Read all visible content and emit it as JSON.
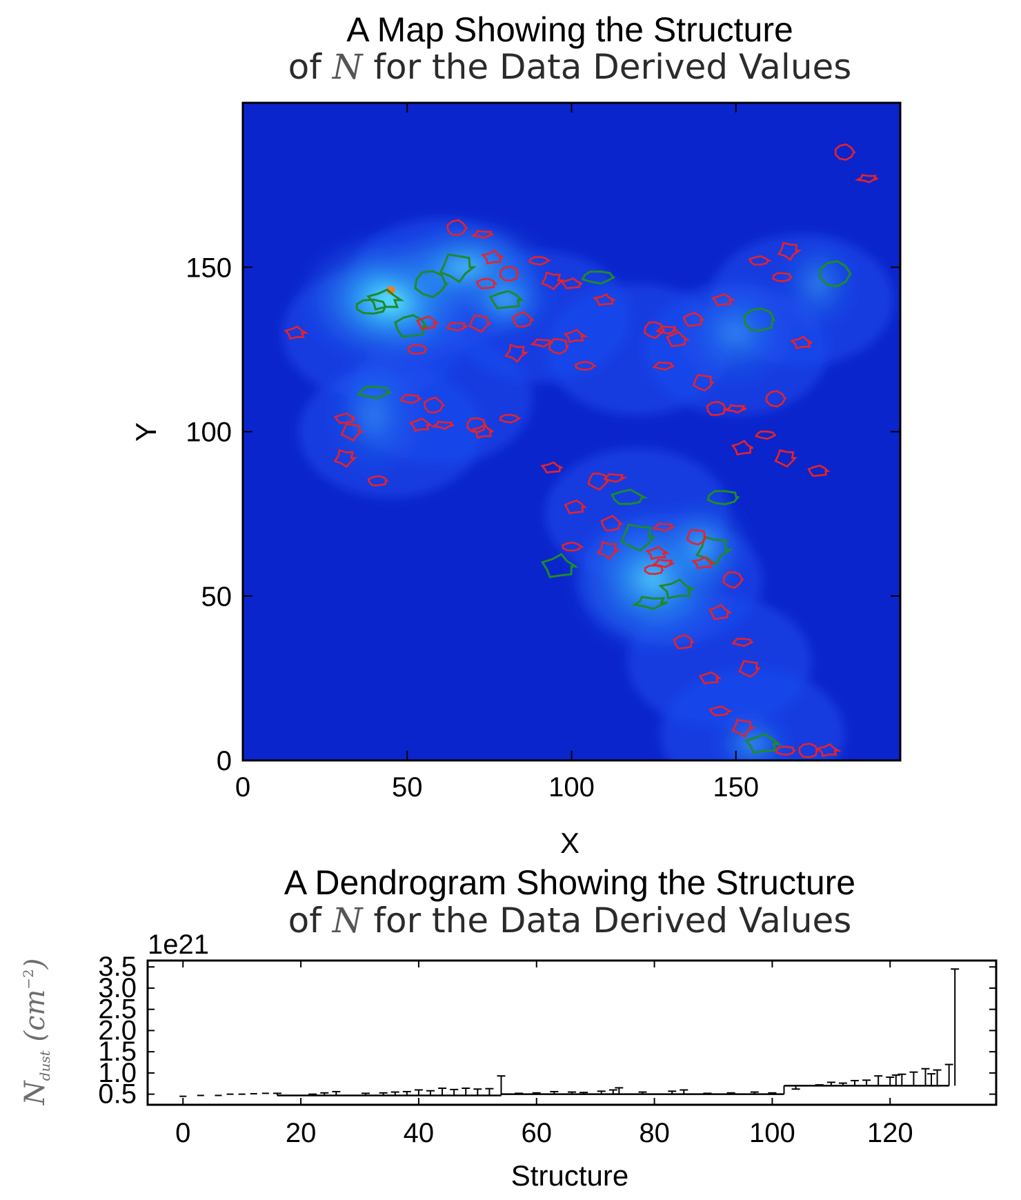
{
  "chart_data": [
    {
      "type": "heatmap",
      "title_line1": "A Map Showing the Structure",
      "title_line2": {
        "prefix": "of ",
        "italic": "N",
        "suffix": " for the Data Derived Values"
      },
      "xlabel": "X",
      "ylabel": "Y",
      "xlim": [
        0,
        200
      ],
      "ylim": [
        0,
        200
      ],
      "xticks": [
        0,
        50,
        100,
        150
      ],
      "yticks": [
        0,
        50,
        100,
        150
      ],
      "colormap": {
        "low": "#0a1fc8",
        "mid": "#1e5cf0",
        "high": "#35d0f0",
        "peak": "#ff7a1a"
      },
      "bright_regions": [
        {
          "x": 45,
          "y": 140,
          "rx": 22,
          "ry": 16,
          "level": 1.0
        },
        {
          "x": 68,
          "y": 150,
          "rx": 20,
          "ry": 12,
          "level": 0.7
        },
        {
          "x": 80,
          "y": 140,
          "rx": 12,
          "ry": 10,
          "level": 0.55
        },
        {
          "x": 125,
          "y": 55,
          "rx": 20,
          "ry": 18,
          "level": 0.75
        },
        {
          "x": 140,
          "y": 65,
          "rx": 12,
          "ry": 12,
          "level": 0.5
        },
        {
          "x": 155,
          "y": 5,
          "rx": 10,
          "ry": 8,
          "level": 0.45
        },
        {
          "x": 150,
          "y": 130,
          "rx": 14,
          "ry": 14,
          "level": 0.35
        },
        {
          "x": 175,
          "y": 145,
          "rx": 10,
          "ry": 12,
          "level": 0.35
        },
        {
          "x": 40,
          "y": 105,
          "rx": 12,
          "ry": 16,
          "level": 0.3
        }
      ],
      "contours": {
        "green": [
          [
            43,
            140
          ],
          [
            65,
            150
          ],
          [
            80,
            140
          ],
          [
            108,
            147
          ],
          [
            157,
            134
          ],
          [
            180,
            148
          ],
          [
            146,
            80
          ],
          [
            117,
            80
          ],
          [
            120,
            68
          ],
          [
            96,
            59
          ],
          [
            124,
            48
          ],
          [
            132,
            52
          ],
          [
            143,
            64
          ],
          [
            158,
            5
          ],
          [
            40,
            112
          ],
          [
            51,
            132
          ],
          [
            57,
            145
          ],
          [
            39,
            138
          ]
        ],
        "red": [
          [
            16,
            130
          ],
          [
            65,
            162
          ],
          [
            73,
            160
          ],
          [
            81,
            148
          ],
          [
            76,
            153
          ],
          [
            90,
            152
          ],
          [
            94,
            146
          ],
          [
            74,
            145
          ],
          [
            100,
            145
          ],
          [
            72,
            133
          ],
          [
            65,
            132
          ],
          [
            56,
            133
          ],
          [
            85,
            134
          ],
          [
            91,
            127
          ],
          [
            96,
            126
          ],
          [
            101,
            129
          ],
          [
            104,
            120
          ],
          [
            83,
            124
          ],
          [
            53,
            125
          ],
          [
            110,
            140
          ],
          [
            125,
            131
          ],
          [
            129,
            131
          ],
          [
            137,
            134
          ],
          [
            132,
            128
          ],
          [
            128,
            120
          ],
          [
            140,
            115
          ],
          [
            146,
            140
          ],
          [
            157,
            152
          ],
          [
            166,
            155
          ],
          [
            164,
            147
          ],
          [
            170,
            127
          ],
          [
            162,
            110
          ],
          [
            150,
            107
          ],
          [
            144,
            107
          ],
          [
            152,
            95
          ],
          [
            159,
            99
          ],
          [
            165,
            92
          ],
          [
            175,
            88
          ],
          [
            31,
            104
          ],
          [
            33,
            100
          ],
          [
            51,
            110
          ],
          [
            54,
            102
          ],
          [
            58,
            108
          ],
          [
            61,
            102
          ],
          [
            71,
            102
          ],
          [
            73,
            100
          ],
          [
            81,
            104
          ],
          [
            31,
            92
          ],
          [
            41,
            85
          ],
          [
            94,
            89
          ],
          [
            108,
            85
          ],
          [
            113,
            86
          ],
          [
            101,
            77
          ],
          [
            112,
            72
          ],
          [
            128,
            71
          ],
          [
            138,
            68
          ],
          [
            126,
            63
          ],
          [
            100,
            65
          ],
          [
            111,
            64
          ],
          [
            125,
            58
          ],
          [
            140,
            60
          ],
          [
            149,
            55
          ],
          [
            128,
            60
          ],
          [
            134,
            36
          ],
          [
            145,
            45
          ],
          [
            152,
            36
          ],
          [
            154,
            28
          ],
          [
            142,
            25
          ],
          [
            145,
            15
          ],
          [
            152,
            10
          ],
          [
            165,
            3
          ],
          [
            178,
            3
          ],
          [
            183,
            185
          ],
          [
            190,
            177
          ],
          [
            172,
            3
          ]
        ]
      }
    },
    {
      "type": "line",
      "title_line1": "A Dendrogram Showing the Structure",
      "title_line2": {
        "prefix": "of ",
        "italic": "N",
        "suffix": " for the Data Derived Values"
      },
      "xlabel": "Structure",
      "ylabel": {
        "main": "N",
        "sub": "dust",
        "unit": " (cm",
        "sup": "−2",
        "close": ")"
      },
      "offset_text": "1e21",
      "xlim": [
        -6,
        138
      ],
      "ylim": [
        0.25,
        3.65
      ],
      "xticks": [
        0,
        20,
        40,
        60,
        80,
        100,
        120
      ],
      "ytick_labels": [
        "0.5",
        "1.0",
        "1.5",
        "2.0",
        "2.5",
        "3.0",
        "3.5"
      ],
      "yticks": [
        0.5,
        1.0,
        1.5,
        2.0,
        2.5,
        3.0,
        3.5
      ],
      "branches": [
        {
          "x1": 16,
          "x2": 54,
          "y": 0.47,
          "leaves": [
            [
              16,
              0.52
            ],
            [
              22,
              0.5
            ],
            [
              24,
              0.53
            ],
            [
              26,
              0.56
            ],
            [
              31,
              0.52
            ],
            [
              34,
              0.53
            ],
            [
              36,
              0.55
            ],
            [
              38,
              0.56
            ],
            [
              40,
              0.6
            ],
            [
              42,
              0.58
            ],
            [
              44,
              0.64
            ],
            [
              46,
              0.61
            ],
            [
              48,
              0.64
            ],
            [
              50,
              0.62
            ],
            [
              52,
              0.63
            ],
            [
              54,
              0.93
            ]
          ]
        },
        {
          "x1": 54,
          "x2": 102,
          "y": 0.5,
          "leaves": [
            [
              57,
              0.52
            ],
            [
              60,
              0.53
            ],
            [
              63,
              0.56
            ],
            [
              66,
              0.55
            ],
            [
              68,
              0.54
            ],
            [
              71,
              0.57
            ],
            [
              73,
              0.6
            ],
            [
              74,
              0.65
            ],
            [
              78,
              0.55
            ],
            [
              83,
              0.57
            ],
            [
              85,
              0.6
            ],
            [
              89,
              0.52
            ],
            [
              93,
              0.53
            ],
            [
              97,
              0.55
            ],
            [
              100,
              0.53
            ]
          ]
        },
        {
          "x1": 102,
          "x2": 130,
          "y": 0.7,
          "leaves": [
            [
              104,
              0.62
            ],
            [
              106,
              0.7
            ],
            [
              108,
              0.72
            ],
            [
              110,
              0.78
            ],
            [
              112,
              0.76
            ],
            [
              114,
              0.82
            ],
            [
              116,
              0.83
            ],
            [
              118,
              0.93
            ],
            [
              120,
              0.9
            ],
            [
              121,
              0.95
            ],
            [
              122,
              0.97
            ],
            [
              124,
              1.02
            ],
            [
              126,
              1.1
            ],
            [
              127,
              0.98
            ],
            [
              128,
              1.07
            ],
            [
              130,
              1.2
            ],
            [
              131,
              3.45
            ]
          ]
        }
      ],
      "isolated": [
        [
          3,
          0.47
        ],
        [
          6,
          0.47
        ],
        [
          8,
          0.5
        ],
        [
          10,
          0.5
        ],
        [
          12,
          0.51
        ],
        [
          14,
          0.52
        ],
        [
          0,
          0.45
        ]
      ]
    }
  ]
}
